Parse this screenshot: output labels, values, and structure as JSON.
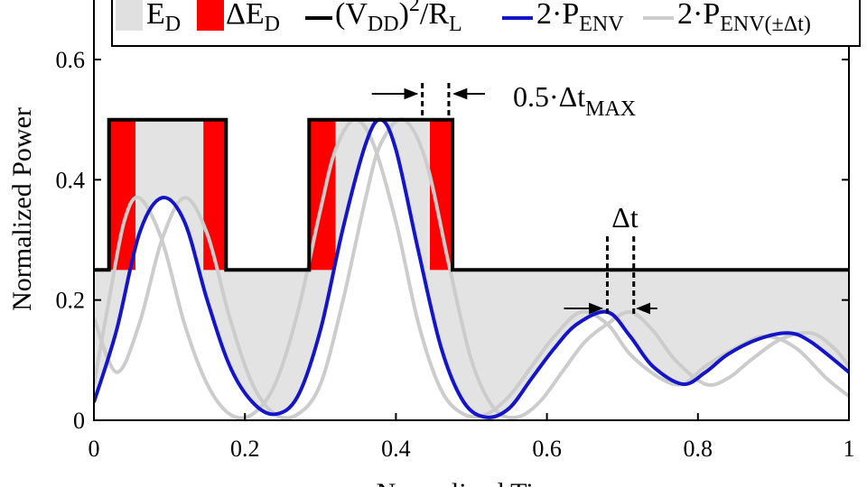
{
  "chart_data": {
    "type": "line",
    "xlabel": "Normalized Time",
    "ylabel": "Normalized Power",
    "xlim": [
      0,
      1
    ],
    "ylim": [
      0,
      0.65
    ],
    "x_ticks": [
      "0",
      "0.2",
      "0.4",
      "0.6",
      "0.8",
      "1"
    ],
    "x_tick_values": [
      0,
      0.2,
      0.4,
      0.6,
      0.8,
      1
    ],
    "y_ticks": [
      "0",
      "0.2",
      "0.4",
      "0.6"
    ],
    "y_tick_values": [
      0,
      0.2,
      0.4,
      0.6
    ],
    "grid": false,
    "legend": {
      "placement": "top",
      "entries": [
        {
          "key": "ed",
          "main": "E",
          "sub": "D",
          "sup": "",
          "tail": "",
          "tail_sub": "",
          "color": "#e0e0e0"
        },
        {
          "key": "ded",
          "main": "ΔE",
          "sub": "D",
          "sup": "",
          "tail": "",
          "tail_sub": "",
          "color": "#ff0000"
        },
        {
          "key": "vdd",
          "main": "(V",
          "sub": "DD",
          "sup": ")",
          "tail": "/R",
          "tail_sub": "L",
          "color": "#000000"
        },
        {
          "key": "penv",
          "main": "2·P",
          "sub": "ENV",
          "sup": "",
          "tail": "",
          "tail_sub": "",
          "color": "#1414c8"
        },
        {
          "key": "penv_shift",
          "main": "2·P",
          "sub": "ENV(±Δt)",
          "sup": "",
          "tail": "",
          "tail_sub": "",
          "color": "#cccccc"
        }
      ]
    },
    "supply_level": [
      {
        "x0": 0,
        "x1": 0.02,
        "y": 0.25
      },
      {
        "x0": 0.02,
        "x1": 0.175,
        "y": 0.5
      },
      {
        "x0": 0.175,
        "x1": 0.285,
        "y": 0.25
      },
      {
        "x0": 0.285,
        "x1": 0.475,
        "y": 0.5
      },
      {
        "x0": 0.475,
        "x1": 1.0,
        "y": 0.25
      }
    ],
    "delta_ed_regions": [
      {
        "x0": 0.02,
        "x1": 0.055,
        "y0": 0.25,
        "y1": 0.5
      },
      {
        "x0": 0.145,
        "x1": 0.175,
        "y0": 0.25,
        "y1": 0.5
      },
      {
        "x0": 0.285,
        "x1": 0.32,
        "y0": 0.25,
        "y1": 0.5
      },
      {
        "x0": 0.445,
        "x1": 0.475,
        "y0": 0.25,
        "y1": 0.5
      }
    ],
    "series": [
      {
        "name": "2·P_ENV",
        "x": [
          0,
          0.03,
          0.06,
          0.09,
          0.12,
          0.15,
          0.18,
          0.21,
          0.24,
          0.27,
          0.3,
          0.33,
          0.36,
          0.38,
          0.4,
          0.43,
          0.46,
          0.49,
          0.52,
          0.55,
          0.58,
          0.61,
          0.64,
          0.68,
          0.71,
          0.74,
          0.78,
          0.81,
          0.84,
          0.88,
          0.92,
          0.95,
          1.0
        ],
        "y": [
          0.03,
          0.15,
          0.31,
          0.37,
          0.33,
          0.2,
          0.09,
          0.03,
          0.01,
          0.04,
          0.15,
          0.32,
          0.46,
          0.5,
          0.45,
          0.28,
          0.12,
          0.03,
          0.005,
          0.02,
          0.07,
          0.12,
          0.16,
          0.18,
          0.14,
          0.09,
          0.06,
          0.08,
          0.11,
          0.135,
          0.145,
          0.13,
          0.08
        ]
      },
      {
        "name": "2·P_ENV(+Δt)",
        "x": [
          0,
          0.03,
          0.06,
          0.09,
          0.12,
          0.15,
          0.18,
          0.21,
          0.24,
          0.27,
          0.3,
          0.33,
          0.36,
          0.38,
          0.41,
          0.44,
          0.47,
          0.5,
          0.53,
          0.56,
          0.59,
          0.62,
          0.65,
          0.68,
          0.71,
          0.74,
          0.77,
          0.81,
          0.84,
          0.87,
          0.91,
          0.95,
          0.98,
          1.0
        ],
        "y": [
          0.17,
          0.08,
          0.16,
          0.3,
          0.37,
          0.31,
          0.17,
          0.06,
          0.01,
          0.01,
          0.06,
          0.2,
          0.37,
          0.46,
          0.5,
          0.43,
          0.26,
          0.1,
          0.02,
          0.005,
          0.03,
          0.08,
          0.13,
          0.16,
          0.18,
          0.15,
          0.1,
          0.06,
          0.07,
          0.1,
          0.135,
          0.145,
          0.12,
          0.09
        ]
      },
      {
        "name": "2·P_ENV(-Δt)",
        "x": [
          0,
          0.02,
          0.04,
          0.06,
          0.09,
          0.12,
          0.15,
          0.18,
          0.21,
          0.24,
          0.27,
          0.3,
          0.32,
          0.345,
          0.37,
          0.4,
          0.43,
          0.46,
          0.49,
          0.52,
          0.55,
          0.58,
          0.61,
          0.645,
          0.68,
          0.71,
          0.75,
          0.78,
          0.81,
          0.85,
          0.89,
          0.93,
          0.97,
          1.0
        ],
        "y": [
          0.06,
          0.2,
          0.33,
          0.37,
          0.3,
          0.16,
          0.06,
          0.01,
          0.01,
          0.06,
          0.18,
          0.35,
          0.45,
          0.5,
          0.46,
          0.33,
          0.16,
          0.05,
          0.01,
          0.01,
          0.04,
          0.09,
          0.14,
          0.18,
          0.16,
          0.11,
          0.07,
          0.06,
          0.09,
          0.12,
          0.14,
          0.12,
          0.07,
          0.04
        ]
      }
    ],
    "annotations": {
      "dt_max": {
        "main": "0.5·Δt",
        "sub": "MAX",
        "x0": 0.435,
        "x1": 0.47,
        "y": 0.55
      },
      "dt": {
        "label": "Δt",
        "x0": 0.68,
        "x1": 0.715,
        "y": 0.18
      }
    }
  }
}
